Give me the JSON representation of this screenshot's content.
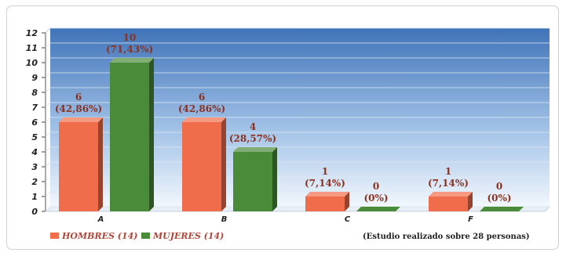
{
  "chart_data": {
    "type": "bar",
    "categories": [
      "A",
      "B",
      "C",
      "F"
    ],
    "series": [
      {
        "name": "HOMBRES (14)",
        "values": [
          6,
          6,
          1,
          1
        ],
        "labels": [
          "6",
          "6",
          "1",
          "1"
        ],
        "pct_labels": [
          "(42,86%)",
          "(42,86%)",
          "(7,14%)",
          "(7,14%)"
        ],
        "color": "#f06d4b"
      },
      {
        "name": "MUJERES (14)",
        "values": [
          10,
          4,
          0,
          0
        ],
        "labels": [
          "10",
          "4",
          "0",
          "0"
        ],
        "pct_labels": [
          "(71,43%)",
          "(28,57%)",
          "(0%)",
          "(0%)"
        ],
        "color": "#4a8b3a"
      }
    ],
    "y_ticks": [
      "0",
      "1",
      "2",
      "3",
      "4",
      "5",
      "6",
      "7",
      "8",
      "9",
      "10",
      "11",
      "12"
    ],
    "ylim": [
      0,
      12
    ],
    "grid": true,
    "legend": "bottom-left",
    "note": "(Estudio realizado sobre 28 personas)"
  }
}
